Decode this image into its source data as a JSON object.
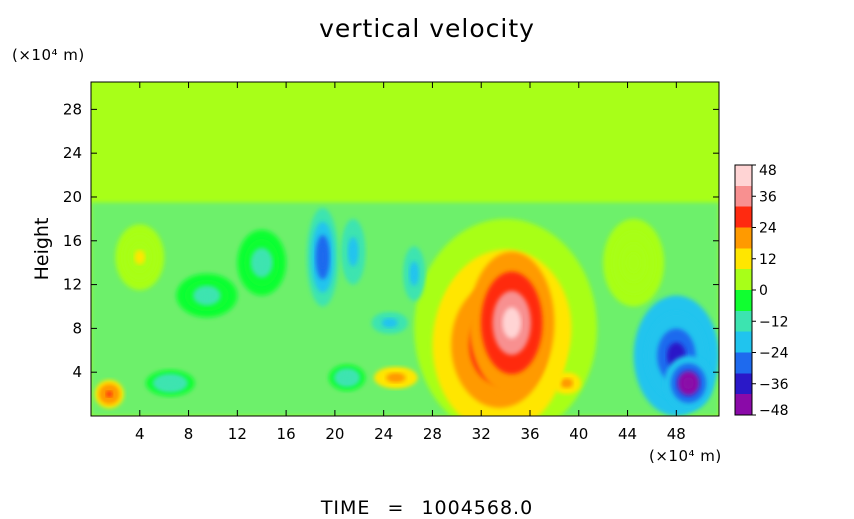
{
  "chart_data": {
    "type": "heatmap",
    "title": "vertical velocity",
    "ylabel": "Height",
    "xunit": "(×10⁴ m)",
    "yunit": "(×10⁴ m)",
    "xlim": [
      0,
      51.5
    ],
    "ylim": [
      0,
      30.5
    ],
    "xticks": [
      4,
      8,
      12,
      16,
      20,
      24,
      28,
      32,
      36,
      40,
      44,
      48
    ],
    "yticks": [
      4,
      8,
      12,
      16,
      20,
      24,
      28
    ],
    "colorbar": {
      "ticks": [
        48,
        36,
        24,
        12,
        0,
        -12,
        -24,
        -36,
        -48
      ],
      "range": [
        -48,
        48
      ]
    },
    "background_value": 0,
    "disturbed_layer_top": 19.5,
    "features": [
      {
        "x": 34.5,
        "y": 8.5,
        "value": 45,
        "rx": 3.5,
        "ry": 6.5
      },
      {
        "x": 33.5,
        "y": 6.5,
        "value": 30,
        "rx": 5.5,
        "ry": 8.0
      },
      {
        "x": 34.0,
        "y": 8.0,
        "value": 14,
        "rx": 7.5,
        "ry": 10.0
      },
      {
        "x": 49.0,
        "y": 3.0,
        "value": -48,
        "rx": 2.0,
        "ry": 2.5
      },
      {
        "x": 48.0,
        "y": 5.5,
        "value": -36,
        "rx": 3.5,
        "ry": 5.5
      },
      {
        "x": 19.0,
        "y": 14.5,
        "value": -32,
        "rx": 1.3,
        "ry": 4.5
      },
      {
        "x": 21.5,
        "y": 15.0,
        "value": -20,
        "rx": 1.0,
        "ry": 3.0
      },
      {
        "x": 26.5,
        "y": 13.0,
        "value": -20,
        "rx": 0.9,
        "ry": 2.5
      },
      {
        "x": 24.5,
        "y": 8.5,
        "value": -20,
        "rx": 1.5,
        "ry": 1.0
      },
      {
        "x": 1.5,
        "y": 2.0,
        "value": 28,
        "rx": 1.2,
        "ry": 1.3
      },
      {
        "x": 25.0,
        "y": 3.5,
        "value": 22,
        "rx": 1.8,
        "ry": 1.0
      },
      {
        "x": 39.0,
        "y": 3.0,
        "value": 20,
        "rx": 1.2,
        "ry": 1.0
      },
      {
        "x": 6.5,
        "y": 3.0,
        "value": -16,
        "rx": 2.0,
        "ry": 1.2
      },
      {
        "x": 21.0,
        "y": 3.5,
        "value": -16,
        "rx": 1.5,
        "ry": 1.2
      },
      {
        "x": 9.5,
        "y": 11.0,
        "value": -10,
        "rx": 2.5,
        "ry": 2.0
      },
      {
        "x": 14.0,
        "y": 14.0,
        "value": -10,
        "rx": 2.0,
        "ry": 3.0
      },
      {
        "x": 4.0,
        "y": 14.5,
        "value": 8,
        "rx": 2.0,
        "ry": 3.0
      },
      {
        "x": 44.5,
        "y": 14.0,
        "value": 6,
        "rx": 2.5,
        "ry": 4.0
      }
    ]
  },
  "footer": {
    "time_label": "TIME",
    "time_equals": "=",
    "time_value": "1004568.0"
  },
  "colors": {
    "background": "#ffffff",
    "axis": "#000000",
    "palette": [
      "#8a0aa8",
      "#2a18c8",
      "#1e6aee",
      "#20c4ee",
      "#3ce4b0",
      "#10ff30",
      "#a8ff18",
      "#ffe600",
      "#ff9a00",
      "#ff2a10",
      "#f89090",
      "#ffd4d4"
    ]
  }
}
